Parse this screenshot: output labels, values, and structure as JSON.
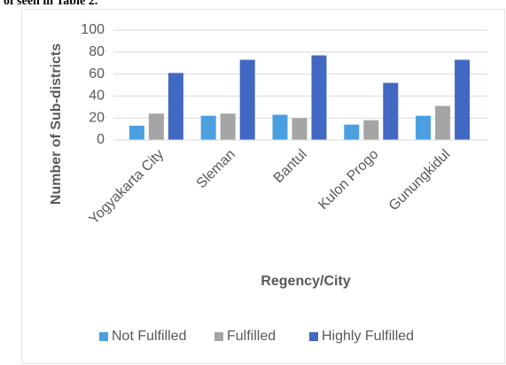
{
  "header_text": "of seen in Table 2.",
  "chart_data": {
    "type": "bar",
    "y_label": "Number of Sub-districts",
    "x_label": "Regency/City",
    "categories": [
      "Yogyakarta City",
      "Sleman",
      "Bantul",
      "Kulon Progo",
      "Gunungkidul"
    ],
    "series": [
      {
        "name": "Not Fulfilled",
        "color": "#4a9fe0",
        "values": [
          13,
          22,
          23,
          14,
          22
        ]
      },
      {
        "name": "Fulfilled",
        "color": "#a5a5a5",
        "values": [
          24,
          24,
          20,
          18,
          31
        ]
      },
      {
        "name": "Highly Fulfilled",
        "color": "#4168c2",
        "values": [
          61,
          73,
          77,
          52,
          73
        ]
      }
    ],
    "ylim": [
      0,
      100
    ],
    "yticks": [
      0,
      20,
      40,
      60,
      80,
      100
    ],
    "grid": true,
    "legend": "bottom"
  }
}
